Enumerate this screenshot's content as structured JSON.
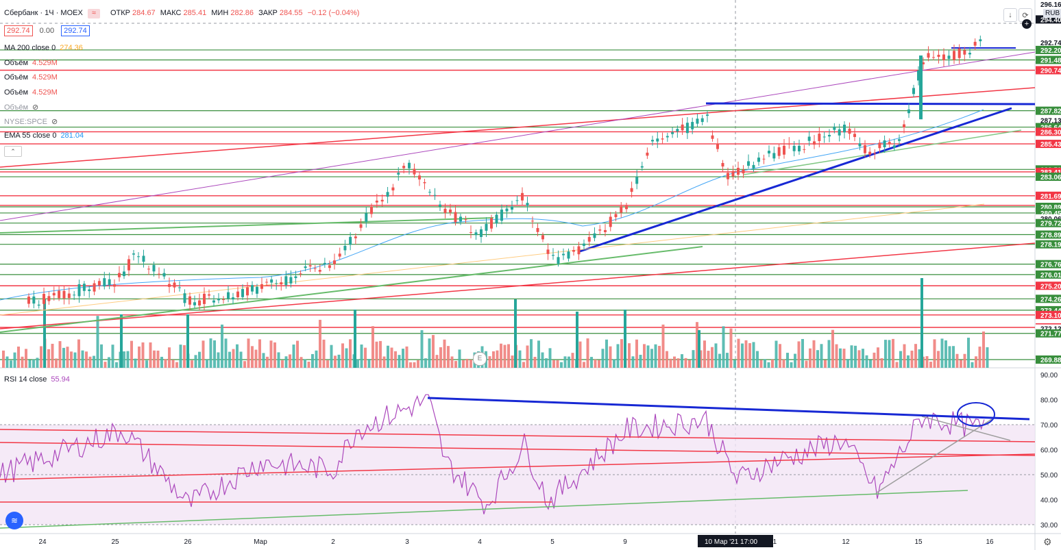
{
  "header": {
    "symbol": "Сбербанк · 1Ч · MOEX",
    "open_label": "ОТКР",
    "open": "284.67",
    "high_label": "МАКС",
    "high": "285.41",
    "low_label": "МИН",
    "low": "282.86",
    "close_label": "ЗАКР",
    "close": "284.55",
    "change": "−0.12 (−0.04%)",
    "currency": "RUB"
  },
  "price_boxes": {
    "left": "292.74",
    "spread": "0.00",
    "right": "292.74"
  },
  "legend": {
    "ma200": {
      "name": "MA 200 close 0",
      "value": "274.36"
    },
    "vol1": {
      "name": "Объём",
      "value": "4.529M"
    },
    "vol2": {
      "name": "Объём",
      "value": "4.529M"
    },
    "vol3": {
      "name": "Объём",
      "value": "4.529M"
    },
    "vol_hidden": {
      "name": "Объём"
    },
    "nyse": {
      "name": "NYSE:SPCE"
    },
    "ema55": {
      "name": "EMA 55 close 0",
      "value": "281.04"
    }
  },
  "rsi_legend": {
    "name": "RSI 14 close",
    "value": "55.94"
  },
  "price_axis": [
    {
      "v": 296.16,
      "t": "296.16"
    },
    {
      "v": 294.4,
      "t": "294.40"
    },
    {
      "v": 292.74,
      "t": "292.74"
    },
    {
      "v": 292.2,
      "t": "292.20"
    },
    {
      "v": 291.48,
      "t": "291.48"
    },
    {
      "v": 290.74,
      "t": "290.74"
    },
    {
      "v": 287.82,
      "t": "287.82"
    },
    {
      "v": 287.13,
      "t": "287.13"
    },
    {
      "v": 286.64,
      "t": "286.64"
    },
    {
      "v": 286.3,
      "t": "286.30"
    },
    {
      "v": 285.43,
      "t": "285.43"
    },
    {
      "v": 283.59,
      "t": "283.59"
    },
    {
      "v": 283.41,
      "t": "283.41"
    },
    {
      "v": 283.06,
      "t": "283.06"
    },
    {
      "v": 281.69,
      "t": "281.69"
    },
    {
      "v": 280.89,
      "t": "280.89"
    },
    {
      "v": 280.45,
      "t": "280.45"
    },
    {
      "v": 280.06,
      "t": "280.06"
    },
    {
      "v": 279.72,
      "t": "279.72"
    },
    {
      "v": 278.89,
      "t": "278.89"
    },
    {
      "v": 278.19,
      "t": "278.19"
    },
    {
      "v": 276.76,
      "t": "276.76"
    },
    {
      "v": 276.01,
      "t": "276.01"
    },
    {
      "v": 275.2,
      "t": "275.20"
    },
    {
      "v": 274.26,
      "t": "274.26"
    },
    {
      "v": 273.44,
      "t": "273.44"
    },
    {
      "v": 273.1,
      "t": "273.10"
    },
    {
      "v": 272.2,
      "t": "272.20"
    },
    {
      "v": 272.12,
      "t": "272.12"
    },
    {
      "v": 271.77,
      "t": "271.77"
    },
    {
      "v": 269.88,
      "t": "269.88"
    }
  ],
  "rsi_axis": [
    "90.00",
    "80.00",
    "70.00",
    "60.00",
    "50.00",
    "40.00",
    "30.00"
  ],
  "time_axis": [
    "24",
    "25",
    "26",
    "Мар",
    "2",
    "3",
    "4",
    "5",
    "9",
    "10 Мар '21   17:00",
    "11",
    "12",
    "15",
    "16"
  ],
  "event_marker": "E",
  "colors": {
    "up": "#26a69a",
    "down": "#ef5350",
    "red_level": "#f23645",
    "green_level": "#388e3c",
    "blue_trend": "#1728d4",
    "rsi": "#ab47bc",
    "ma": "#f9a825",
    "ema": "#42a5f5"
  },
  "chart_data": {
    "type": "candlestick",
    "x_range": [
      "24 Feb 2021",
      "16 Mar 2021"
    ],
    "y_range": [
      269.5,
      296.5
    ],
    "close_path": [
      {
        "x": "24",
        "close": 274.0
      },
      {
        "x": "25",
        "close": 275.5
      },
      {
        "x": "25.5",
        "close": 277.5
      },
      {
        "x": "26",
        "close": 274.0
      },
      {
        "x": "Мар",
        "close": 275.0
      },
      {
        "x": "2",
        "close": 277.0
      },
      {
        "x": "2.5",
        "close": 280.5
      },
      {
        "x": "3",
        "close": 284.0
      },
      {
        "x": "3.5",
        "close": 280.8
      },
      {
        "x": "4",
        "close": 279.0
      },
      {
        "x": "4.5",
        "close": 281.5
      },
      {
        "x": "5",
        "close": 277.0
      },
      {
        "x": "5.5",
        "close": 278.0
      },
      {
        "x": "9",
        "close": 281.0
      },
      {
        "x": "9.5",
        "close": 285.5
      },
      {
        "x": "10",
        "close": 287.3
      },
      {
        "x": "10.5",
        "close": 283.0
      },
      {
        "x": "11",
        "close": 284.5
      },
      {
        "x": "12",
        "close": 286.5
      },
      {
        "x": "12.5",
        "close": 285.0
      },
      {
        "x": "13",
        "close": 285.5
      },
      {
        "x": "15",
        "close": 291.5
      },
      {
        "x": "15.5",
        "close": 291.8
      },
      {
        "x": "16",
        "close": 292.74
      }
    ],
    "rsi": [
      {
        "x": "24",
        "v": 50
      },
      {
        "x": "25",
        "v": 68
      },
      {
        "x": "26",
        "v": 38
      },
      {
        "x": "Мар",
        "v": 55
      },
      {
        "x": "2",
        "v": 52
      },
      {
        "x": "2.5",
        "v": 68
      },
      {
        "x": "3",
        "v": 80
      },
      {
        "x": "3.5",
        "v": 55
      },
      {
        "x": "4",
        "v": 38
      },
      {
        "x": "4.5",
        "v": 62
      },
      {
        "x": "5",
        "v": 39
      },
      {
        "x": "9",
        "v": 68
      },
      {
        "x": "10",
        "v": 72
      },
      {
        "x": "10.5",
        "v": 48
      },
      {
        "x": "11",
        "v": 55
      },
      {
        "x": "12",
        "v": 64
      },
      {
        "x": "13",
        "v": 43
      },
      {
        "x": "15",
        "v": 73
      },
      {
        "x": "16",
        "v": 68
      }
    ]
  }
}
